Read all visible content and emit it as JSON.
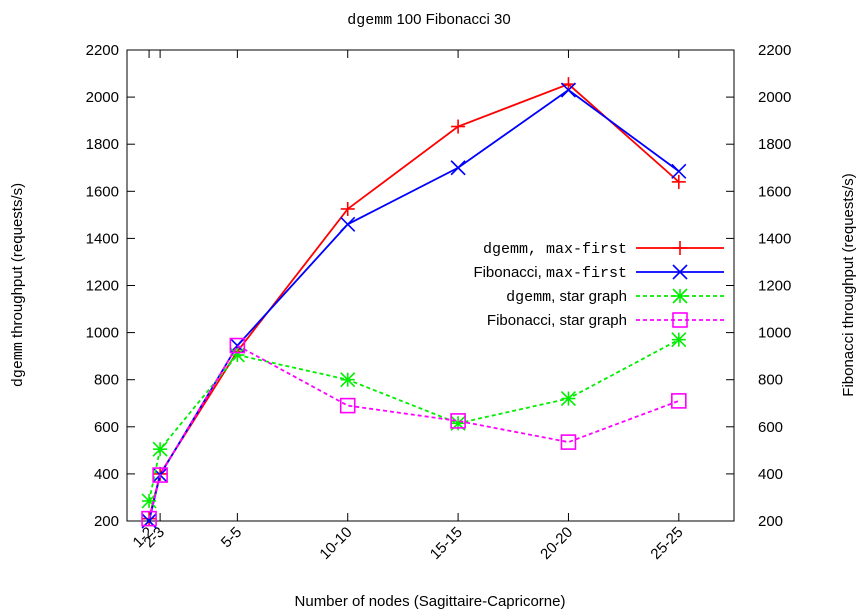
{
  "chart_data": {
    "type": "line",
    "title": {
      "mono": "dgemm",
      "text": " 100 Fibonacci 30"
    },
    "xlabel": "Number of nodes (Sagittaire-Capricorne)",
    "ylabel_left": {
      "mono": "dgemm",
      "text": " throughput (requests/s)"
    },
    "ylabel_right": "Fibonacci throughput (requests/s)",
    "ylim": [
      200,
      2200
    ],
    "yticks": [
      200,
      400,
      600,
      800,
      1000,
      1200,
      1400,
      1600,
      1800,
      2000,
      2200
    ],
    "x_positions": [
      2,
      3,
      10,
      20,
      30,
      40,
      50
    ],
    "xlim": [
      0,
      55
    ],
    "categories": [
      "1-2",
      "2-3",
      "5-5",
      "10-10",
      "15-15",
      "20-20",
      "25-25"
    ],
    "legend_position": "right-middle",
    "grid": false,
    "series": [
      {
        "name_mono": "dgemm, max-first",
        "name_text": "",
        "color": "#ff0000",
        "marker": "plus",
        "dashed": false,
        "values": [
          210,
          400,
          920,
          1525,
          1875,
          2055,
          1640
        ]
      },
      {
        "name_mono": "max-first",
        "name_text": "Fibonacci, ",
        "color": "#0000ff",
        "marker": "cross",
        "dashed": false,
        "values": [
          200,
          395,
          945,
          1460,
          1700,
          2030,
          1685
        ]
      },
      {
        "name_mono": "dgemm",
        "name_text": ", star graph",
        "color": "#00ee00",
        "marker": "star",
        "dashed": true,
        "values": [
          285,
          505,
          905,
          800,
          615,
          720,
          970
        ]
      },
      {
        "name_mono": "",
        "name_text": "Fibonacci, star graph",
        "color": "#ff00ff",
        "marker": "square",
        "dashed": true,
        "values": [
          210,
          395,
          945,
          690,
          625,
          535,
          710
        ]
      }
    ]
  }
}
